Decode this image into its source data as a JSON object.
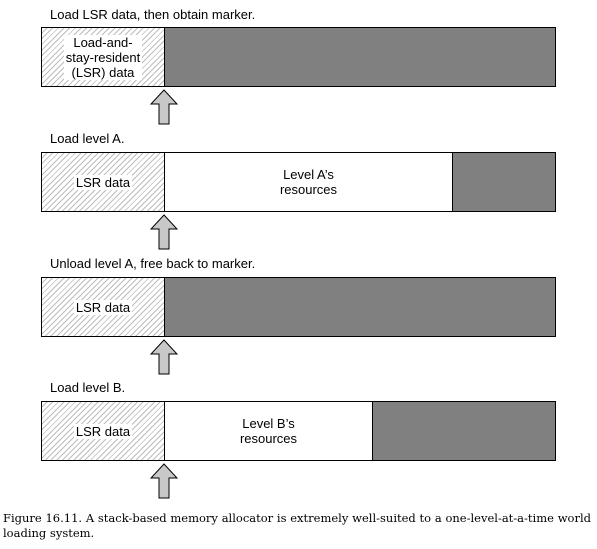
{
  "steps": [
    {
      "label": "Load LSR data, then obtain marker.",
      "lsr_text": "Load-and-\nstay-resident\n(LSR) data",
      "level_text": ""
    },
    {
      "label": "Load level A.",
      "lsr_text": "LSR data",
      "level_text": "Level A’s\nresources"
    },
    {
      "label": "Unload level A, free back to marker.",
      "lsr_text": "LSR data",
      "level_text": ""
    },
    {
      "label": "Load level B.",
      "lsr_text": "LSR data",
      "level_text": "Level B’s\nresources"
    }
  ],
  "caption": "Figure 16.11.  A stack-based memory allocator is extremely well-suited to a one-level-at-a-time world loading system.",
  "colors": {
    "free_memory": "#808080",
    "level_resources": "#ffffff",
    "lsr_hatch": "#bdbdbd",
    "marker_arrow": "#c8c8c8"
  }
}
